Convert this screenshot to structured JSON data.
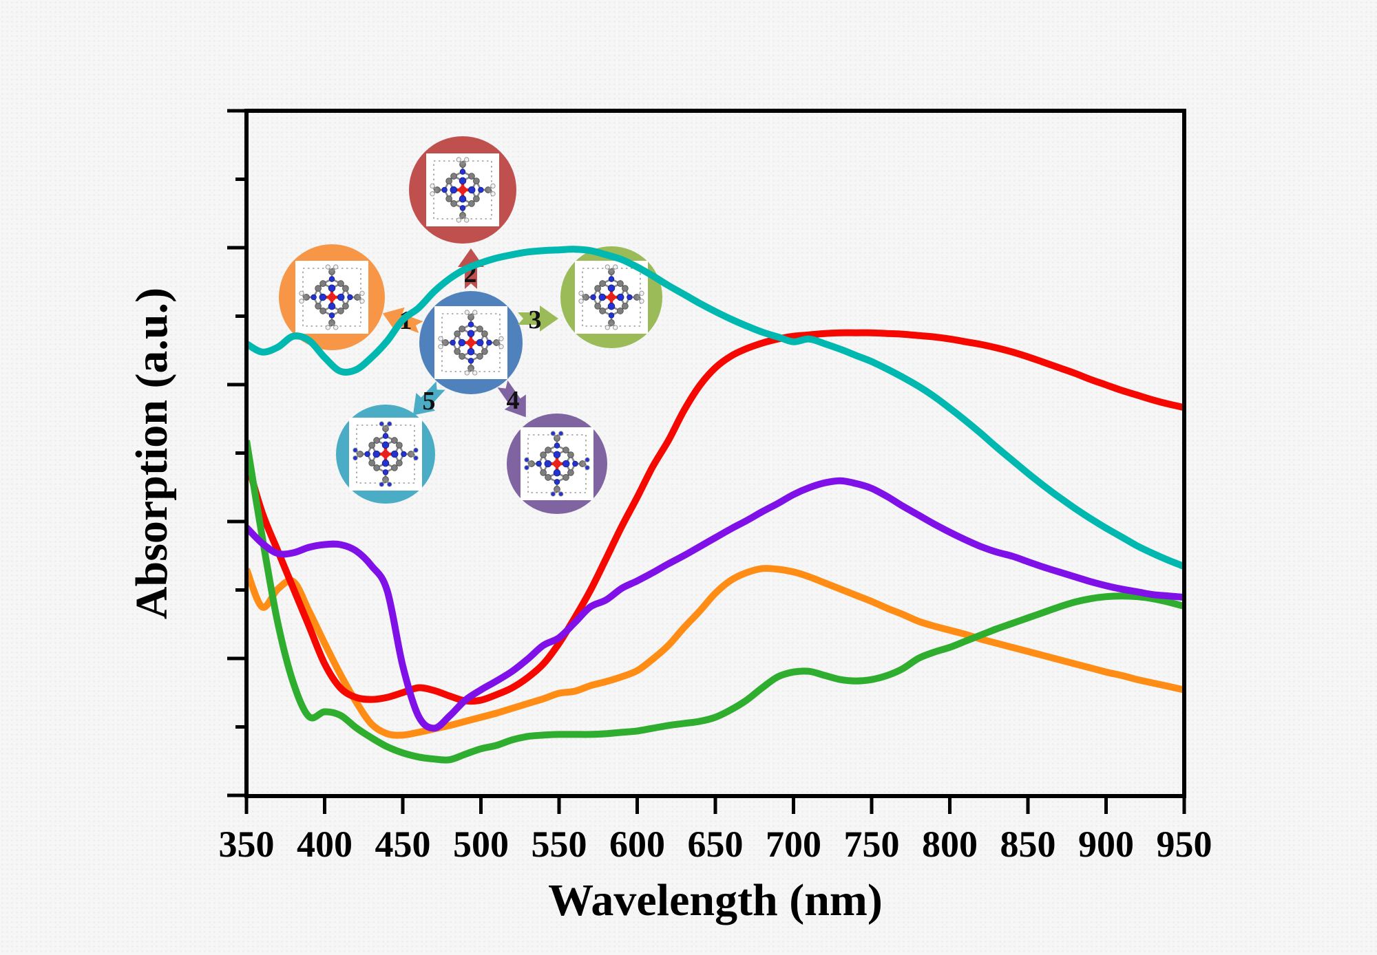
{
  "figure": {
    "background_color": "#f5f6f5",
    "frame_color": "#000000"
  },
  "axes": {
    "x_label": "Wavelength (nm)",
    "y_label": "Absorption (a.u.)",
    "x_tick_labels": [
      "350",
      "400",
      "450",
      "500",
      "550",
      "600",
      "650",
      "700",
      "750",
      "800",
      "850",
      "900",
      "950"
    ],
    "y_tick_labels_visible": false
  },
  "chart_data": {
    "type": "line",
    "title": "",
    "xlabel": "Wavelength (nm)",
    "ylabel": "Absorption (a.u.)",
    "xlim": [
      350,
      950
    ],
    "ylim": [
      0,
      1
    ],
    "grid": false,
    "legend_position": "none",
    "x_tick_labels": [
      "350",
      "400",
      "450",
      "500",
      "550",
      "600",
      "650",
      "700",
      "750",
      "800",
      "850",
      "900",
      "950"
    ],
    "wavelengths_nm": [
      350,
      360,
      370,
      380,
      390,
      400,
      410,
      420,
      430,
      440,
      450,
      460,
      470,
      480,
      490,
      500,
      510,
      520,
      530,
      540,
      550,
      560,
      570,
      580,
      590,
      600,
      610,
      620,
      630,
      640,
      650,
      660,
      670,
      680,
      690,
      700,
      710,
      720,
      730,
      740,
      750,
      760,
      770,
      780,
      790,
      800,
      810,
      820,
      830,
      840,
      850,
      860,
      870,
      880,
      890,
      900,
      910,
      920,
      930,
      940,
      950
    ],
    "y_units": "arbitrary units (a.u.), normalized 0-1 of plot height",
    "series": [
      {
        "name": "1",
        "color": "#ff8d15",
        "values": [
          0.331,
          0.276,
          0.302,
          0.313,
          0.27,
          0.223,
          0.178,
          0.138,
          0.105,
          0.091,
          0.089,
          0.093,
          0.098,
          0.103,
          0.109,
          0.115,
          0.121,
          0.128,
          0.135,
          0.142,
          0.15,
          0.153,
          0.161,
          0.167,
          0.174,
          0.183,
          0.2,
          0.22,
          0.246,
          0.27,
          0.296,
          0.315,
          0.326,
          0.332,
          0.331,
          0.327,
          0.32,
          0.311,
          0.302,
          0.293,
          0.284,
          0.274,
          0.265,
          0.255,
          0.248,
          0.242,
          0.236,
          0.229,
          0.223,
          0.217,
          0.211,
          0.205,
          0.199,
          0.193,
          0.187,
          0.181,
          0.176,
          0.17,
          0.165,
          0.16,
          0.155
        ]
      },
      {
        "name": "2",
        "color": "#f50800",
        "values": [
          0.491,
          0.414,
          0.358,
          0.303,
          0.248,
          0.193,
          0.158,
          0.144,
          0.141,
          0.144,
          0.151,
          0.158,
          0.154,
          0.146,
          0.139,
          0.14,
          0.148,
          0.158,
          0.173,
          0.193,
          0.223,
          0.26,
          0.3,
          0.346,
          0.393,
          0.436,
          0.481,
          0.519,
          0.563,
          0.599,
          0.625,
          0.642,
          0.653,
          0.661,
          0.667,
          0.671,
          0.673,
          0.675,
          0.676,
          0.676,
          0.676,
          0.675,
          0.674,
          0.672,
          0.67,
          0.667,
          0.663,
          0.659,
          0.654,
          0.648,
          0.641,
          0.633,
          0.625,
          0.617,
          0.608,
          0.6,
          0.592,
          0.585,
          0.578,
          0.572,
          0.567
        ]
      },
      {
        "name": "3",
        "color": "#2fad2f",
        "values": [
          0.519,
          0.379,
          0.253,
          0.165,
          0.116,
          0.123,
          0.118,
          0.1,
          0.085,
          0.072,
          0.063,
          0.057,
          0.054,
          0.053,
          0.061,
          0.069,
          0.074,
          0.082,
          0.087,
          0.089,
          0.09,
          0.09,
          0.09,
          0.091,
          0.093,
          0.095,
          0.099,
          0.103,
          0.106,
          0.109,
          0.115,
          0.126,
          0.14,
          0.158,
          0.174,
          0.181,
          0.182,
          0.176,
          0.17,
          0.168,
          0.17,
          0.176,
          0.186,
          0.201,
          0.21,
          0.217,
          0.226,
          0.235,
          0.244,
          0.252,
          0.26,
          0.268,
          0.276,
          0.283,
          0.288,
          0.291,
          0.292,
          0.291,
          0.288,
          0.283,
          0.277
        ]
      },
      {
        "name": "4",
        "color": "#8010e8",
        "values": [
          0.392,
          0.369,
          0.354,
          0.355,
          0.363,
          0.367,
          0.367,
          0.358,
          0.336,
          0.3,
          0.19,
          0.117,
          0.099,
          0.117,
          0.14,
          0.155,
          0.168,
          0.182,
          0.2,
          0.22,
          0.231,
          0.253,
          0.276,
          0.286,
          0.303,
          0.314,
          0.326,
          0.339,
          0.351,
          0.364,
          0.377,
          0.39,
          0.402,
          0.415,
          0.427,
          0.44,
          0.45,
          0.457,
          0.46,
          0.456,
          0.449,
          0.437,
          0.423,
          0.41,
          0.397,
          0.385,
          0.374,
          0.364,
          0.356,
          0.35,
          0.342,
          0.334,
          0.327,
          0.32,
          0.313,
          0.307,
          0.302,
          0.298,
          0.294,
          0.292,
          0.29
        ]
      },
      {
        "name": "5",
        "color": "#00b8b0",
        "values": [
          0.66,
          0.648,
          0.655,
          0.671,
          0.665,
          0.64,
          0.62,
          0.622,
          0.64,
          0.664,
          0.695,
          0.712,
          0.736,
          0.755,
          0.769,
          0.778,
          0.785,
          0.79,
          0.794,
          0.796,
          0.797,
          0.798,
          0.796,
          0.79,
          0.783,
          0.772,
          0.759,
          0.745,
          0.732,
          0.719,
          0.707,
          0.696,
          0.686,
          0.677,
          0.67,
          0.663,
          0.667,
          0.66,
          0.652,
          0.643,
          0.634,
          0.623,
          0.611,
          0.598,
          0.583,
          0.566,
          0.548,
          0.529,
          0.509,
          0.49,
          0.471,
          0.453,
          0.436,
          0.42,
          0.405,
          0.391,
          0.378,
          0.365,
          0.354,
          0.344,
          0.335
        ]
      }
    ]
  },
  "inset": {
    "description": "central molecule converted to five derivative molecules",
    "center_molecule": {
      "icon": "molecule-structure",
      "circle_color": "#4f81bd"
    },
    "arrows": [
      {
        "label": "1",
        "color": "#f79646",
        "direction": "down-left"
      },
      {
        "label": "2",
        "color": "#c0504d",
        "direction": "up"
      },
      {
        "label": "3",
        "color": "#9bbb59",
        "direction": "right"
      },
      {
        "label": "4",
        "color": "#8064a2",
        "direction": "down-right"
      },
      {
        "label": "5",
        "color": "#4bacc6",
        "direction": "down-left"
      }
    ],
    "molecules": [
      {
        "id": "1",
        "icon": "molecule-structure",
        "circle_color": "#f79646"
      },
      {
        "id": "2",
        "icon": "molecule-structure",
        "circle_color": "#c0504d"
      },
      {
        "id": "3",
        "icon": "molecule-structure",
        "circle_color": "#9bbb59"
      },
      {
        "id": "4",
        "icon": "molecule-structure",
        "circle_color": "#8064a2"
      },
      {
        "id": "5",
        "icon": "molecule-structure",
        "circle_color": "#4bacc6"
      }
    ]
  }
}
